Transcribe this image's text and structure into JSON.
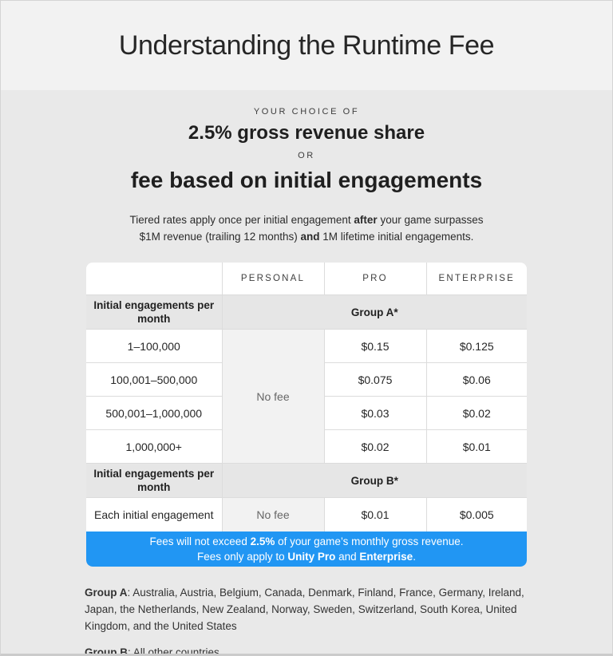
{
  "header": {
    "title": "Understanding the Runtime Fee"
  },
  "choice": {
    "eyebrow": "Your choice of",
    "option_revenue_share": "2.5% gross revenue share",
    "or_label": "or",
    "option_engagement_fee": "fee based on initial engagements",
    "note_lines": [
      [
        {
          "t": "Tiered rates apply once per initial engagement ",
          "b": false
        },
        {
          "t": "after",
          "b": true
        },
        {
          "t": " your game surpasses",
          "b": false
        }
      ],
      [
        {
          "t": "$1M revenue (trailing 12 months) ",
          "b": false
        },
        {
          "t": "and",
          "b": true
        },
        {
          "t": " 1M lifetime initial engagements.",
          "b": false
        }
      ]
    ]
  },
  "table": {
    "columns": [
      "",
      "Personal",
      "Pro",
      "Enterprise"
    ],
    "group_a": {
      "row_header": "Initial engagements per month",
      "group_label": "Group A*",
      "personal_fee": "No fee",
      "rows": [
        {
          "range": "1–100,000",
          "pro": "$0.15",
          "enterprise": "$0.125"
        },
        {
          "range": "100,001–500,000",
          "pro": "$0.075",
          "enterprise": "$0.06"
        },
        {
          "range": "500,001–1,000,000",
          "pro": "$0.03",
          "enterprise": "$0.02"
        },
        {
          "range": "1,000,000+",
          "pro": "$0.02",
          "enterprise": "$0.01"
        }
      ]
    },
    "group_b": {
      "row_header": "Initial engagements per month",
      "group_label": "Group B*",
      "rows": [
        {
          "range": "Each initial engagement",
          "personal": "No fee",
          "pro": "$0.01",
          "enterprise": "$0.005"
        }
      ]
    }
  },
  "banner": {
    "lines": [
      [
        {
          "t": "Fees will not exceed ",
          "b": false
        },
        {
          "t": "2.5%",
          "b": true
        },
        {
          "t": " of your game’s monthly gross revenue.",
          "b": false
        }
      ],
      [
        {
          "t": "Fees only apply to ",
          "b": false
        },
        {
          "t": "Unity Pro",
          "b": true
        },
        {
          "t": " and ",
          "b": false
        },
        {
          "t": "Enterprise",
          "b": true
        },
        {
          "t": ".",
          "b": false
        }
      ]
    ]
  },
  "footnotes": {
    "group_a": [
      {
        "t": "Group A",
        "b": true
      },
      {
        "t": ": Australia, Austria, Belgium, Canada, Denmark, Finland, France, Germany, Ireland, Japan, the Netherlands, New Zealand, Norway, Sweden, Switzerland, South Korea, United Kingdom, and the United States",
        "b": false
      }
    ],
    "group_b": [
      {
        "t": "Group B",
        "b": true
      },
      {
        "t": ": All other countries",
        "b": false
      }
    ]
  },
  "colors": {
    "banner_blue": "#2196f3",
    "header_band": "#f2f2f2",
    "page_background": "#e9e9e9"
  }
}
